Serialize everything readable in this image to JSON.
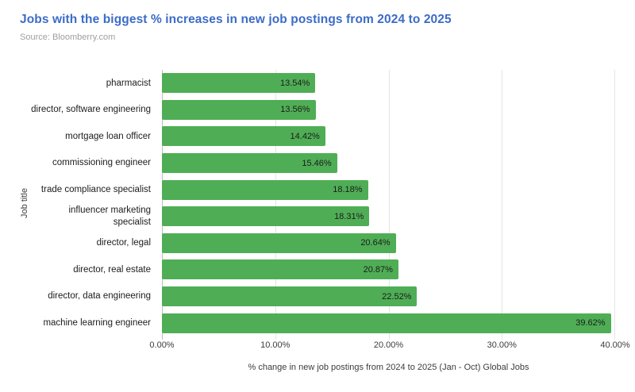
{
  "header": {
    "title": "Jobs with the biggest % increases in new job postings from 2024 to 2025",
    "source": "Source: Bloomberry.com"
  },
  "chart_data": {
    "type": "bar",
    "orientation": "horizontal",
    "title": "Jobs with the biggest % increases in new job postings from 2024 to 2025",
    "source": "Source: Bloomberry.com",
    "xlabel": "% change in new job postings from 2024 to 2025 (Jan - Oct) Global Jobs",
    "ylabel": "Job title",
    "categories": [
      "pharmacist",
      "director, software engineering",
      "mortgage loan officer",
      "commissioning engineer",
      "trade compliance specialist",
      "influencer marketing specialist",
      "director, legal",
      "director, real estate",
      "director, data engineering",
      "machine learning engineer"
    ],
    "display_labels": [
      "pharmacist",
      "director, software engineering",
      "mortgage loan officer",
      "commissioning engineer",
      "trade compliance specialist",
      "influencer marketing\nspecialist",
      "director, legal",
      "director, real estate",
      "director, data engineering",
      "machine learning engineer"
    ],
    "values": [
      13.54,
      13.56,
      14.42,
      15.46,
      18.18,
      18.31,
      20.64,
      20.87,
      22.52,
      39.62
    ],
    "value_labels": [
      "13.54%",
      "13.56%",
      "14.42%",
      "15.46%",
      "18.18%",
      "18.31%",
      "20.64%",
      "20.87%",
      "22.52%",
      "39.62%"
    ],
    "xticks": [
      "0.00%",
      "10.00%",
      "20.00%",
      "30.00%",
      "40.00%"
    ],
    "xtick_values": [
      0,
      10,
      20,
      30,
      40
    ],
    "xlim": [
      0,
      40
    ],
    "grid": true,
    "legend": "none",
    "bar_color": "#4fae55",
    "value_label_position": "inside-end"
  },
  "colors": {
    "title": "#3b6cc7",
    "source": "#9e9e9e",
    "bar": "#4fae55",
    "gridline": "#e4e4e4",
    "zero_axis_line": "#bdbdbd",
    "label_text": "#1c1c1c",
    "tick_text": "#3c3c3c",
    "background": "#ffffff"
  }
}
